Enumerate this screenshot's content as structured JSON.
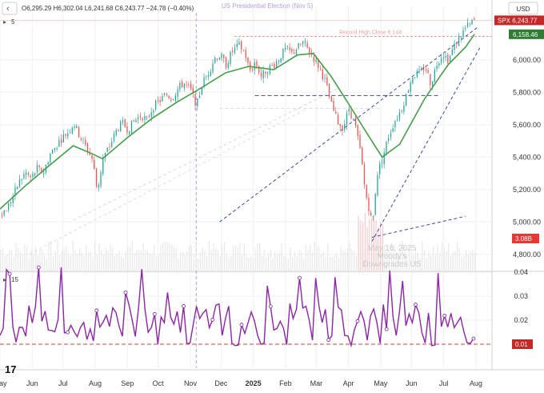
{
  "toolbar": {
    "interval": "5",
    "ohlc": "O6,295.29 H6,302.04 L6,241.68 C6,243.77 −24.78 (−0.40%)",
    "currency": "USD"
  },
  "indicator": {
    "label": "15"
  },
  "chart_data": {
    "type": "line",
    "price_panel": {
      "symbol": "SPX",
      "ylim": [
        4700,
        6330
      ],
      "yticks": [
        "6,000.00",
        "5,800.00",
        "5,600.00",
        "5,400.00",
        "5,200.00",
        "5,000.00",
        "4,800.00"
      ],
      "ytick_values": [
        6000,
        5800,
        5600,
        5400,
        5200,
        5000,
        4800
      ],
      "price_label": {
        "symbol": "SPX",
        "value": "6,243.77",
        "color": "#c62828"
      },
      "ma_label": {
        "value": "6,158.46",
        "color": "#2e7d32"
      },
      "volume_label": {
        "value": "3.08B",
        "color": "#e53935"
      },
      "record_high_line": {
        "label": "Record High Close 6,144",
        "value": 6144
      },
      "ohlc_close": [
        [
          0,
          5050
        ],
        [
          4,
          5080
        ],
        [
          8,
          5150
        ],
        [
          13,
          5250
        ],
        [
          17,
          5305
        ],
        [
          21,
          5270
        ],
        [
          25,
          5330
        ],
        [
          29,
          5300
        ],
        [
          34,
          5420
        ],
        [
          38,
          5470
        ],
        [
          42,
          5520
        ],
        [
          47,
          5560
        ],
        [
          50,
          5610
        ],
        [
          54,
          5530
        ],
        [
          58,
          5470
        ],
        [
          63,
          5380
        ],
        [
          66,
          5190
        ],
        [
          70,
          5390
        ],
        [
          74,
          5460
        ],
        [
          79,
          5560
        ],
        [
          83,
          5610
        ],
        [
          87,
          5570
        ],
        [
          91,
          5620
        ],
        [
          96,
          5660
        ],
        [
          100,
          5630
        ],
        [
          104,
          5710
        ],
        [
          108,
          5740
        ],
        [
          113,
          5790
        ],
        [
          117,
          5760
        ],
        [
          121,
          5820
        ],
        [
          125,
          5860
        ],
        [
          130,
          5810
        ],
        [
          134,
          5720
        ],
        [
          138,
          5860
        ],
        [
          143,
          5940
        ],
        [
          146,
          6010
        ],
        [
          150,
          6030
        ],
        [
          154,
          5970
        ],
        [
          158,
          6050
        ],
        [
          163,
          6090
        ],
        [
          167,
          6040
        ],
        [
          170,
          5930
        ],
        [
          174,
          5990
        ],
        [
          178,
          5900
        ],
        [
          183,
          5950
        ],
        [
          187,
          5970
        ],
        [
          191,
          6020
        ],
        [
          195,
          6070
        ],
        [
          199,
          6040
        ],
        [
          203,
          6080
        ],
        [
          207,
          6110
        ],
        [
          210,
          6060
        ],
        [
          214,
          6010
        ],
        [
          218,
          5950
        ],
        [
          222,
          5860
        ],
        [
          226,
          5720
        ],
        [
          230,
          5620
        ],
        [
          234,
          5580
        ],
        [
          238,
          5700
        ],
        [
          242,
          5600
        ],
        [
          246,
          5420
        ],
        [
          249,
          5190
        ],
        [
          252,
          5070
        ],
        [
          254,
          4980
        ],
        [
          257,
          5290
        ],
        [
          261,
          5400
        ],
        [
          265,
          5530
        ],
        [
          269,
          5620
        ],
        [
          273,
          5680
        ],
        [
          277,
          5780
        ],
        [
          281,
          5900
        ],
        [
          286,
          5920
        ],
        [
          290,
          5960
        ],
        [
          294,
          5850
        ],
        [
          298,
          5980
        ],
        [
          302,
          6040
        ],
        [
          306,
          6000
        ],
        [
          310,
          6090
        ],
        [
          314,
          6150
        ],
        [
          318,
          6200
        ],
        [
          322,
          6230
        ],
        [
          324,
          6244
        ]
      ],
      "ma": [
        [
          0,
          5080
        ],
        [
          17,
          5220
        ],
        [
          34,
          5350
        ],
        [
          50,
          5470
        ],
        [
          63,
          5420
        ],
        [
          70,
          5390
        ],
        [
          87,
          5520
        ],
        [
          104,
          5640
        ],
        [
          121,
          5740
        ],
        [
          138,
          5830
        ],
        [
          154,
          5920
        ],
        [
          170,
          5960
        ],
        [
          187,
          5940
        ],
        [
          203,
          6030
        ],
        [
          214,
          6040
        ],
        [
          226,
          5900
        ],
        [
          238,
          5730
        ],
        [
          249,
          5570
        ],
        [
          261,
          5400
        ],
        [
          273,
          5480
        ],
        [
          290,
          5760
        ],
        [
          306,
          5970
        ],
        [
          318,
          6080
        ],
        [
          324,
          6158
        ]
      ],
      "volume_ylim": [
        0,
        8
      ]
    },
    "oscillator_panel": {
      "ylim": [
        0.0,
        0.04
      ],
      "yticks": [
        "0.04",
        "0.03",
        "0.02"
      ],
      "ytick_values": [
        0.04,
        0.03,
        0.02
      ],
      "level_label": {
        "value": "0.01",
        "color": "#c62828"
      },
      "level": 0.01
    },
    "x_axis": {
      "labels": [
        "May",
        "Jun",
        "Jul",
        "Aug",
        "Sep",
        "Oct",
        "Nov",
        "Dec",
        "2025",
        "Feb",
        "Mar",
        "Apr",
        "May",
        "Jun",
        "Jul",
        "Aug"
      ],
      "positions": [
        0,
        22,
        43,
        65,
        87,
        108,
        130,
        151,
        173,
        195,
        216,
        238,
        260,
        281,
        303,
        325
      ]
    },
    "annotations": {
      "election": "US Presidential Election (Nov 5)",
      "downgrade_line1": "May 16, 2025",
      "downgrade_line2": "Moody's",
      "downgrade_line3": "Downgrades US"
    },
    "grid": true,
    "legend": "none"
  }
}
